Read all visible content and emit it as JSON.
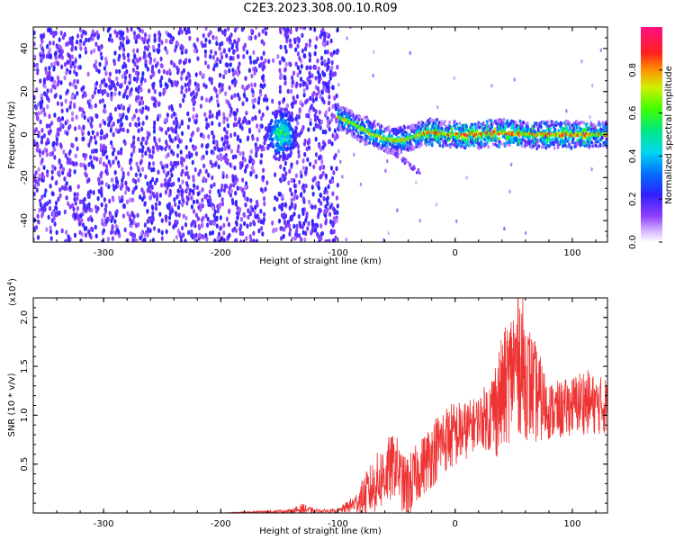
{
  "figure_title": "C2E3.2023.308.00.10.R09",
  "chart_data": [
    {
      "type": "heatmap",
      "title": "C2E3.2023.308.00.10.R09",
      "xlabel": "Height of straight line (km)",
      "ylabel": "Frequency (Hz)",
      "xlim": [
        -360,
        130
      ],
      "ylim": [
        -50,
        50
      ],
      "xticks": [
        -300,
        -200,
        -100,
        0,
        100
      ],
      "yticks": [
        -40,
        -20,
        0,
        20,
        40
      ],
      "colorbar": {
        "label": "Normalized spectral amplitude",
        "range": [
          0.0,
          1.0
        ],
        "ticks": [
          0.0,
          0.2,
          0.4,
          0.6,
          0.8
        ],
        "tick_labels": [
          "0.0",
          "0.2",
          "0.4",
          "0.6",
          "0.8"
        ],
        "colormap": "rainbow (white-purple-blue-cyan-green-yellow-red-magenta)"
      },
      "features": {
        "broadband_noise_x_range": [
          -360,
          -100
        ],
        "clear_gap_x_range": [
          -160,
          -150
        ],
        "strong_blob": {
          "x": -148,
          "y": 0,
          "amplitude": 0.45
        },
        "carrier_line": {
          "x_range": [
            -100,
            130
          ],
          "center_freq_points": [
            [
              -100,
              8
            ],
            [
              -90,
              6
            ],
            [
              -80,
              3
            ],
            [
              -70,
              0
            ],
            [
              -60,
              -2
            ],
            [
              -50,
              -3
            ],
            [
              -40,
              -2
            ],
            [
              -30,
              0
            ],
            [
              -20,
              1
            ],
            [
              -10,
              0
            ],
            [
              0,
              0
            ],
            [
              20,
              0
            ],
            [
              40,
              1
            ],
            [
              60,
              0
            ],
            [
              80,
              0
            ],
            [
              100,
              0
            ],
            [
              130,
              0
            ]
          ],
          "peak_amplitude": 0.95
        },
        "side_trail": {
          "from": [
            -60,
            -5
          ],
          "to": [
            -30,
            -18
          ]
        }
      }
    },
    {
      "type": "line",
      "title": "",
      "xlabel": "Height of straight line (km)",
      "ylabel": "SNR (10 * v/v)",
      "y_multiplier_label": "(x10",
      "y_multiplier_exponent": "4",
      "y_multiplier_suffix": ")",
      "xlim": [
        -360,
        130
      ],
      "ylim": [
        0,
        2.2
      ],
      "xticks": [
        -300,
        -200,
        -100,
        0,
        100
      ],
      "yticks": [
        0.5,
        1.0,
        1.5,
        2.0
      ],
      "ytick_labels": [
        "0.5",
        "1.0",
        "1.5",
        "2.0"
      ],
      "color": "#ee3333",
      "series": [
        {
          "name": "SNR",
          "x": [
            -360,
            -300,
            -200,
            -140,
            -130,
            -120,
            -100,
            -85,
            -75,
            -60,
            -55,
            -50,
            -45,
            -40,
            -30,
            -20,
            -10,
            0,
            10,
            20,
            30,
            35,
            40,
            50,
            55,
            60,
            70,
            80,
            90,
            100,
            110,
            120,
            130
          ],
          "y": [
            0.0,
            0.0,
            0.0,
            0.02,
            0.04,
            0.02,
            0.02,
            0.1,
            0.2,
            0.4,
            0.45,
            0.5,
            0.3,
            0.25,
            0.45,
            0.6,
            0.75,
            0.8,
            0.85,
            0.95,
            1.0,
            1.1,
            1.2,
            1.5,
            1.6,
            1.4,
            1.2,
            1.05,
            1.05,
            1.1,
            1.15,
            1.1,
            1.1
          ],
          "noise_band": [
            0.0,
            0.0,
            0.0,
            0.02,
            0.06,
            0.02,
            0.02,
            0.1,
            0.25,
            0.35,
            0.35,
            0.3,
            0.3,
            0.35,
            0.3,
            0.35,
            0.35,
            0.35,
            0.3,
            0.25,
            0.4,
            0.55,
            0.6,
            0.7,
            0.8,
            0.65,
            0.5,
            0.3,
            0.3,
            0.3,
            0.35,
            0.3,
            0.3
          ]
        }
      ]
    }
  ]
}
